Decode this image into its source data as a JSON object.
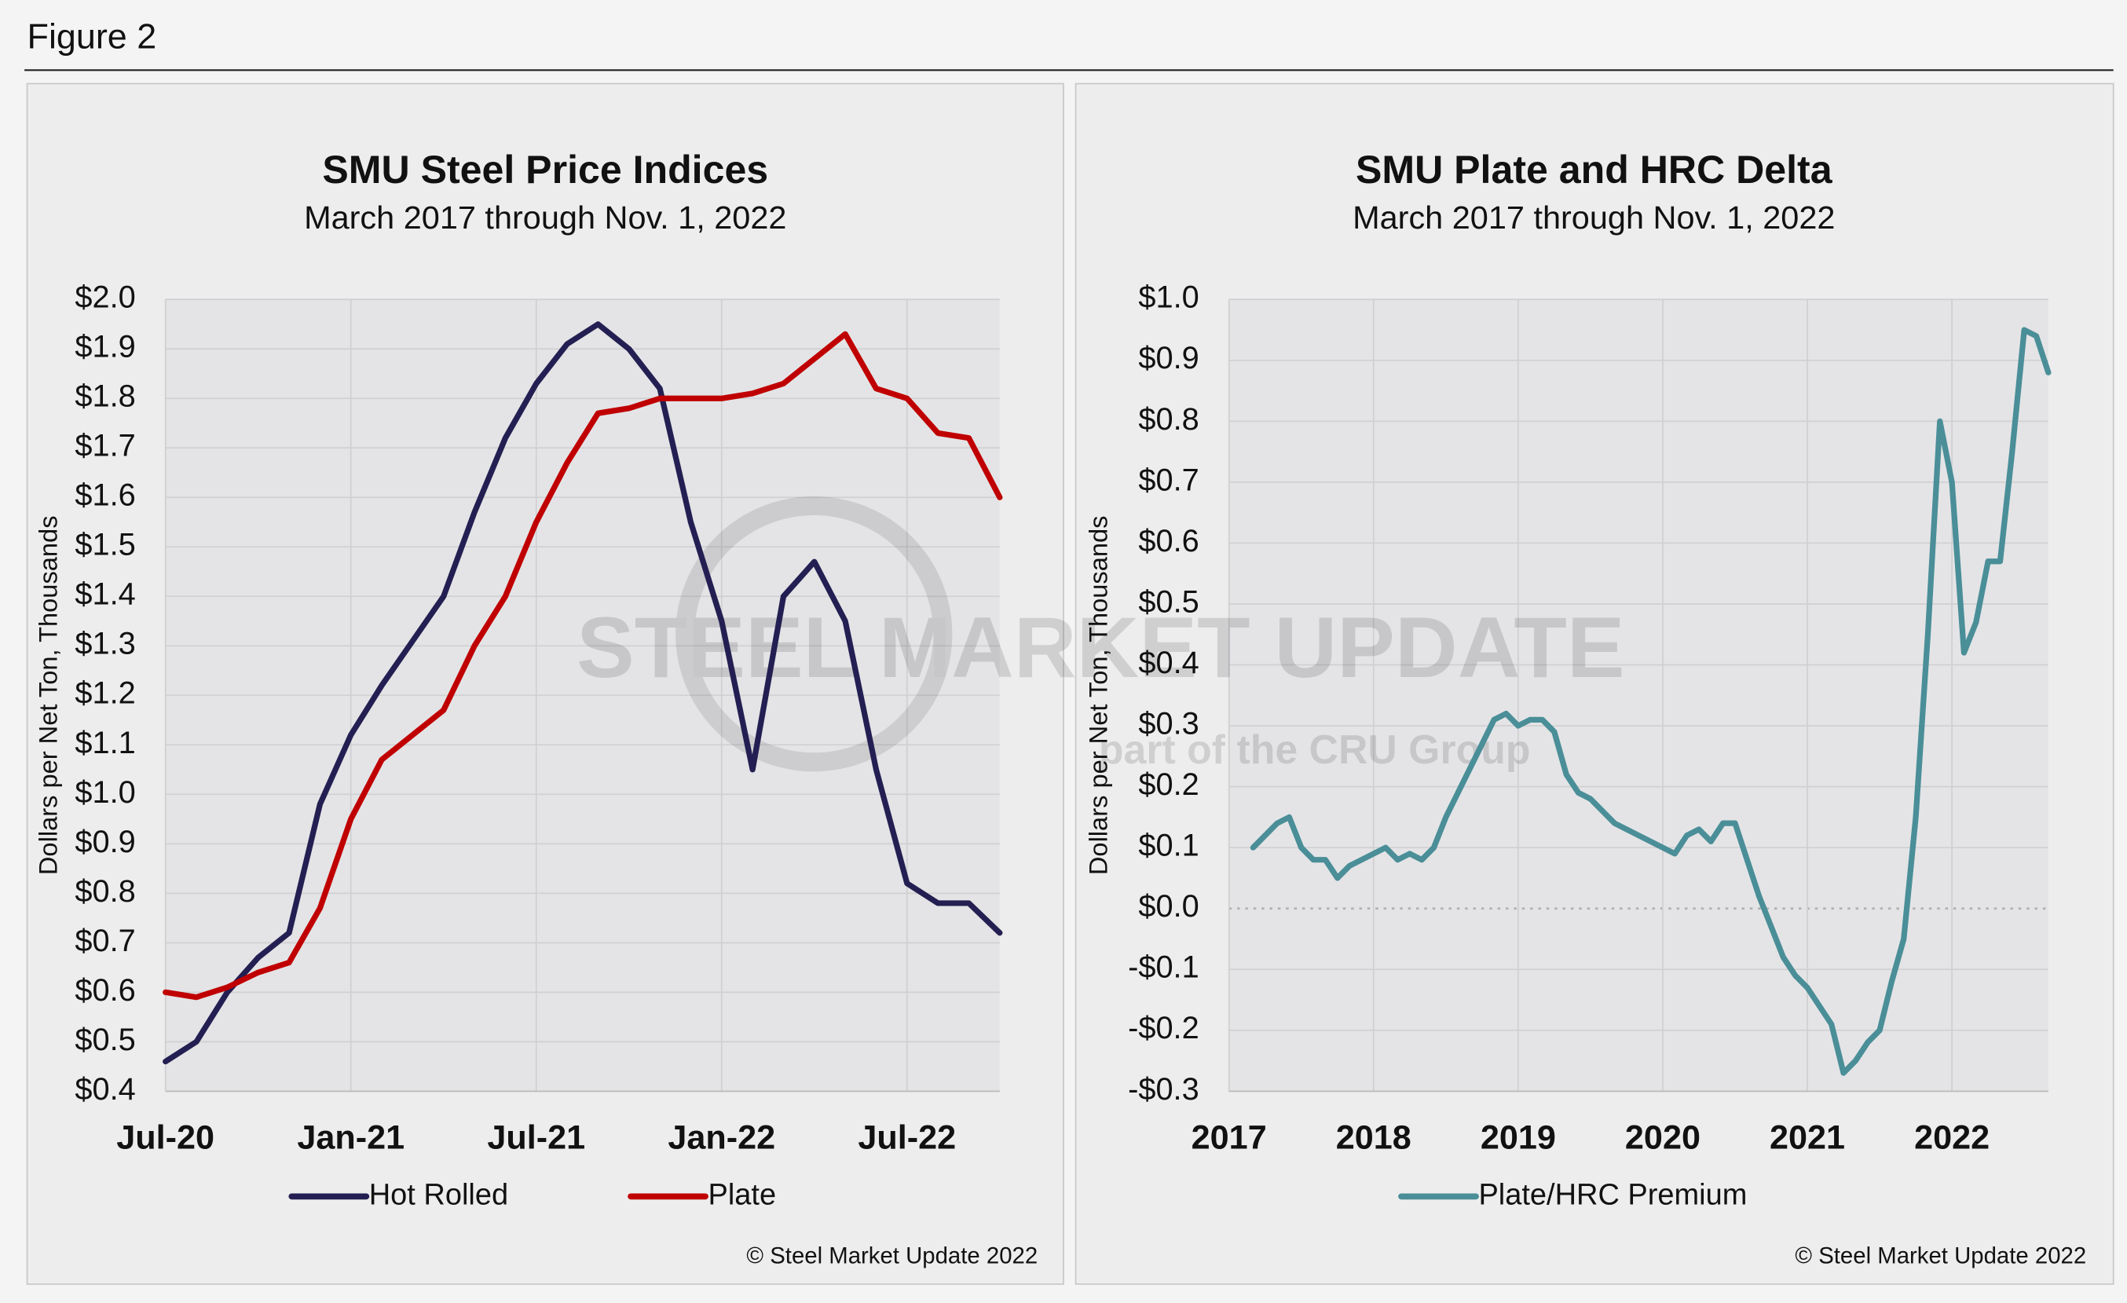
{
  "figure_title": "Figure 2",
  "watermark": {
    "brand": "STEEL MARKET UPDATE",
    "tagline": "part of the CRU Group"
  },
  "chart_data": [
    {
      "type": "line",
      "title": "SMU Steel Price Indices",
      "subtitle": "March 2017 through Nov. 1, 2022",
      "y_label": "Dollars per Net Ton, Thousands",
      "source": "© Steel Market Update 2022",
      "categories": [
        "Jul-20",
        null,
        null,
        null,
        null,
        null,
        "Jan-21",
        null,
        null,
        null,
        null,
        null,
        "Jul-21",
        null,
        null,
        null,
        null,
        null,
        "Jan-22",
        null,
        null,
        null,
        null,
        null,
        "Jul-22",
        null,
        null,
        null
      ],
      "series": [
        {
          "name": "Hot Rolled",
          "color": "#241f52",
          "values": [
            0.46,
            0.5,
            0.6,
            0.67,
            0.72,
            0.98,
            1.12,
            1.22,
            1.31,
            1.4,
            1.57,
            1.72,
            1.83,
            1.91,
            1.95,
            1.9,
            1.82,
            1.55,
            1.35,
            1.05,
            1.4,
            1.47,
            1.35,
            1.05,
            0.82,
            0.78,
            0.78,
            0.72
          ]
        },
        {
          "name": "Plate",
          "color": "#c00000",
          "values": [
            0.6,
            0.59,
            0.61,
            0.64,
            0.66,
            0.77,
            0.95,
            1.07,
            1.12,
            1.17,
            1.3,
            1.4,
            1.55,
            1.67,
            1.77,
            1.78,
            1.8,
            1.8,
            1.8,
            1.81,
            1.83,
            1.88,
            1.93,
            1.82,
            1.8,
            1.73,
            1.72,
            1.6
          ]
        }
      ],
      "ylim": [
        0.4,
        2.0
      ],
      "yticks": [
        {
          "value": 0.4,
          "label": "$0.4"
        },
        {
          "value": 0.5,
          "label": "$0.5"
        },
        {
          "value": 0.6,
          "label": "$0.6"
        },
        {
          "value": 0.7,
          "label": "$0.7"
        },
        {
          "value": 0.8,
          "label": "$0.8"
        },
        {
          "value": 0.9,
          "label": "$0.9"
        },
        {
          "value": 1.0,
          "label": "$1.0"
        },
        {
          "value": 1.1,
          "label": "$1.1"
        },
        {
          "value": 1.2,
          "label": "$1.2"
        },
        {
          "value": 1.3,
          "label": "$1.3"
        },
        {
          "value": 1.4,
          "label": "$1.4"
        },
        {
          "value": 1.5,
          "label": "$1.5"
        },
        {
          "value": 1.6,
          "label": "$1.6"
        },
        {
          "value": 1.7,
          "label": "$1.7"
        },
        {
          "value": 1.8,
          "label": "$1.8"
        },
        {
          "value": 1.9,
          "label": "$1.9"
        },
        {
          "value": 2.0,
          "label": "$2.0"
        }
      ],
      "grid": true,
      "legend": "bottom"
    },
    {
      "type": "line",
      "title": "SMU Plate and HRC Delta",
      "subtitle": "March 2017 through Nov. 1, 2022",
      "y_label": "Dollars per Net Ton, Thousands",
      "source": "© Steel Market Update 2022",
      "categories": [
        "2017",
        null,
        null,
        null,
        null,
        null,
        null,
        null,
        null,
        null,
        null,
        null,
        "2018",
        null,
        null,
        null,
        null,
        null,
        null,
        null,
        null,
        null,
        null,
        null,
        "2019",
        null,
        null,
        null,
        null,
        null,
        null,
        null,
        null,
        null,
        null,
        null,
        "2020",
        null,
        null,
        null,
        null,
        null,
        null,
        null,
        null,
        null,
        null,
        null,
        "2021",
        null,
        null,
        null,
        null,
        null,
        null,
        null,
        null,
        null,
        null,
        null,
        "2022",
        null,
        null,
        null,
        null,
        null,
        null,
        null,
        null
      ],
      "series": [
        {
          "name": "Plate/HRC Premium",
          "color": "#4a8e98",
          "values": [
            null,
            null,
            0.1,
            0.12,
            0.14,
            0.15,
            0.1,
            0.08,
            0.08,
            0.05,
            0.07,
            0.08,
            0.09,
            0.1,
            0.08,
            0.09,
            0.08,
            0.1,
            0.15,
            0.19,
            0.23,
            0.27,
            0.31,
            0.32,
            0.3,
            0.31,
            0.31,
            0.29,
            0.22,
            0.19,
            0.18,
            0.16,
            0.14,
            0.13,
            0.12,
            0.11,
            0.1,
            0.09,
            0.12,
            0.13,
            0.11,
            0.14,
            0.14,
            0.08,
            0.02,
            -0.03,
            -0.08,
            -0.11,
            -0.13,
            -0.16,
            -0.19,
            -0.27,
            -0.25,
            -0.22,
            -0.2,
            -0.12,
            -0.05,
            0.15,
            0.45,
            0.8,
            0.7,
            0.42,
            0.47,
            0.57,
            0.57,
            0.75,
            0.95,
            0.94,
            0.88
          ]
        }
      ],
      "ylim": [
        -0.3,
        1.0
      ],
      "yticks": [
        {
          "value": -0.3,
          "label": "-$0.3"
        },
        {
          "value": -0.2,
          "label": "-$0.2"
        },
        {
          "value": -0.1,
          "label": "-$0.1"
        },
        {
          "value": 0.0,
          "label": "$0.0"
        },
        {
          "value": 0.1,
          "label": "$0.1"
        },
        {
          "value": 0.2,
          "label": "$0.2"
        },
        {
          "value": 0.3,
          "label": "$0.3"
        },
        {
          "value": 0.4,
          "label": "$0.4"
        },
        {
          "value": 0.5,
          "label": "$0.5"
        },
        {
          "value": 0.6,
          "label": "$0.6"
        },
        {
          "value": 0.7,
          "label": "$0.7"
        },
        {
          "value": 0.8,
          "label": "$0.8"
        },
        {
          "value": 0.9,
          "label": "$0.9"
        },
        {
          "value": 1.0,
          "label": "$1.0"
        }
      ],
      "grid": true,
      "legend": "bottom"
    }
  ]
}
